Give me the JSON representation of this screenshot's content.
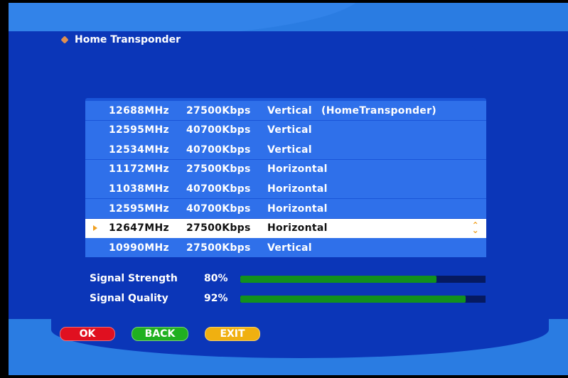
{
  "title": "Home Transponder",
  "transponders": [
    {
      "freq": "12688MHz",
      "rate": "27500Kbps",
      "pol": "Vertical",
      "note": "(HomeTransponder)"
    },
    {
      "freq": "12595MHz",
      "rate": "40700Kbps",
      "pol": "Vertical",
      "note": ""
    },
    {
      "freq": "12534MHz",
      "rate": "40700Kbps",
      "pol": "Vertical",
      "note": ""
    },
    {
      "freq": "11172MHz",
      "rate": "27500Kbps",
      "pol": "Horizontal",
      "note": ""
    },
    {
      "freq": "11038MHz",
      "rate": "40700Kbps",
      "pol": "Horizontal",
      "note": ""
    },
    {
      "freq": "12595MHz",
      "rate": "40700Kbps",
      "pol": "Horizontal",
      "note": ""
    },
    {
      "freq": "12647MHz",
      "rate": "27500Kbps",
      "pol": "Horizontal",
      "note": ""
    },
    {
      "freq": "10990MHz",
      "rate": "27500Kbps",
      "pol": "Vertical",
      "note": ""
    }
  ],
  "selected_index": 6,
  "signal": {
    "strength_label": "Signal Strength",
    "strength": "80%",
    "strength_value": 80,
    "quality_label": "Signal Quality",
    "quality": "92%",
    "quality_value": 92
  },
  "buttons": {
    "ok": "OK",
    "back": "BACK",
    "exit": "EXIT"
  },
  "colors": {
    "ok": "#e01020",
    "back": "#20b020",
    "exit": "#f0b010",
    "selected_row": "#ffffff",
    "row": "#2f70ea",
    "bar_fill": "#12901e"
  }
}
